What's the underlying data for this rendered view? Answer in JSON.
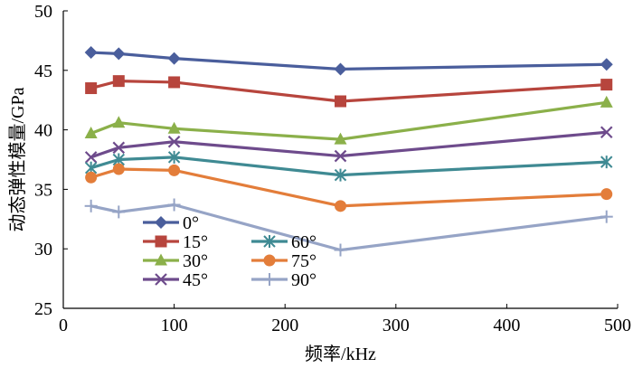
{
  "chart_data": {
    "type": "line",
    "title": "",
    "xlabel": "频率/kHz",
    "ylabel": "动态弹性模量/GPa",
    "xlim": [
      0,
      500
    ],
    "ylim": [
      25,
      50
    ],
    "xticks": [
      0,
      100,
      200,
      300,
      400,
      500
    ],
    "yticks": [
      25,
      30,
      35,
      40,
      45,
      50
    ],
    "x": [
      25,
      50,
      100,
      250,
      490
    ],
    "series": [
      {
        "name": "0°",
        "color": "#4a5e9c",
        "marker": "diamond",
        "values": [
          46.5,
          46.4,
          46.0,
          45.1,
          45.5
        ]
      },
      {
        "name": "15°",
        "color": "#b7453d",
        "marker": "square",
        "values": [
          43.5,
          44.1,
          44.0,
          42.4,
          43.8
        ]
      },
      {
        "name": "30°",
        "color": "#8bb04a",
        "marker": "triangle",
        "values": [
          39.7,
          40.6,
          40.1,
          39.2,
          42.3
        ]
      },
      {
        "name": "45°",
        "color": "#6e4b8c",
        "marker": "x",
        "values": [
          37.7,
          38.5,
          39.0,
          37.8,
          39.8
        ]
      },
      {
        "name": "60°",
        "color": "#3f8a93",
        "marker": "asterisk",
        "values": [
          36.8,
          37.5,
          37.7,
          36.2,
          37.3
        ]
      },
      {
        "name": "75°",
        "color": "#e37d3a",
        "marker": "circle",
        "values": [
          36.0,
          36.7,
          36.6,
          33.6,
          34.6
        ]
      },
      {
        "name": "90°",
        "color": "#96a4c6",
        "marker": "plus",
        "values": [
          33.6,
          33.1,
          33.7,
          29.9,
          32.7
        ]
      }
    ],
    "legend_position": "bottom-left",
    "grid": false
  }
}
